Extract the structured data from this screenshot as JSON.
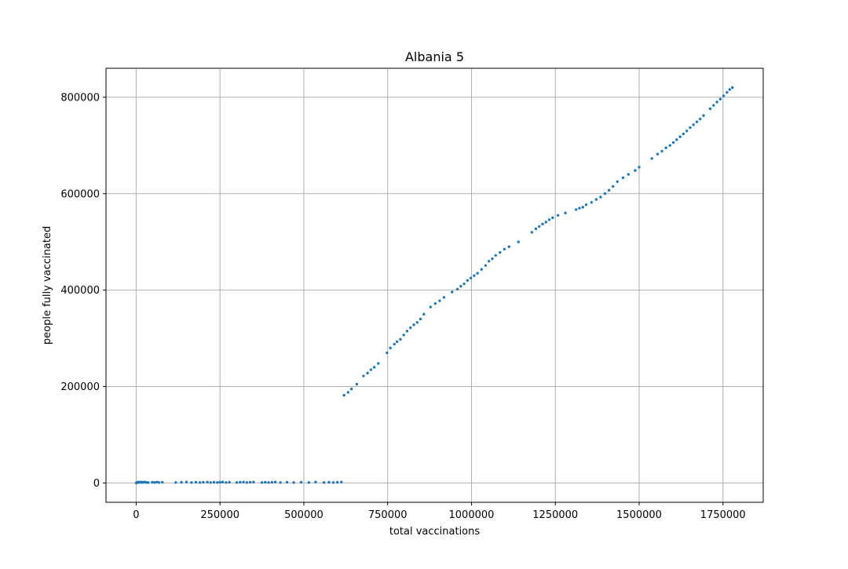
{
  "chart_data": {
    "type": "scatter",
    "title": "Albania 5",
    "xlabel": "total vaccinations",
    "ylabel": "people fully vaccinated",
    "xlim": [
      -90000,
      1870000
    ],
    "ylim": [
      -40000,
      860000
    ],
    "xticks": [
      0,
      250000,
      500000,
      750000,
      1000000,
      1250000,
      1500000,
      1750000
    ],
    "xtick_labels": [
      "0",
      "250000",
      "500000",
      "750000",
      "1000000",
      "1250000",
      "1500000",
      "1750000"
    ],
    "yticks": [
      0,
      200000,
      400000,
      600000,
      800000
    ],
    "ytick_labels": [
      "0",
      "200000",
      "400000",
      "600000",
      "800000"
    ],
    "grid": true,
    "marker_color": "#1f77b4",
    "series": [
      {
        "x": [
          0,
          2000,
          4000,
          6000,
          8000,
          10000,
          12000,
          15000,
          18000,
          22000,
          26000,
          30000,
          36000,
          48000,
          55000,
          62000,
          68000,
          78000,
          118000,
          135000,
          150000,
          165000,
          178000,
          190000,
          200000,
          212000,
          222000,
          232000,
          242000,
          250000,
          258000,
          268000,
          278000,
          300000,
          310000,
          320000,
          330000,
          340000,
          350000,
          375000,
          385000,
          395000,
          405000,
          415000,
          430000,
          450000,
          470000,
          492000,
          515000,
          535000,
          560000,
          575000,
          588000,
          600000,
          612000
        ],
        "y": [
          0,
          1000,
          1500,
          1000,
          2000,
          1000,
          1500,
          2000,
          1000,
          1500,
          2000,
          1000,
          1000,
          1500,
          1000,
          2000,
          1000,
          1500,
          1000,
          1500,
          2000,
          1000,
          1500,
          1000,
          1500,
          2000,
          1000,
          1500,
          1000,
          1500,
          2000,
          1000,
          1500,
          1000,
          1500,
          2000,
          1000,
          1500,
          2000,
          1000,
          1500,
          1000,
          1500,
          2000,
          1000,
          1500,
          1000,
          1500,
          1000,
          2000,
          1000,
          1500,
          1000,
          1500,
          2000
        ]
      },
      {
        "x": [
          620000,
          632000,
          642000,
          658000,
          678000,
          690000,
          700000,
          710000,
          722000,
          748000,
          758000,
          770000,
          778000,
          788000,
          798000,
          808000,
          818000,
          828000,
          838000,
          848000,
          858000,
          878000,
          892000,
          905000,
          918000,
          942000,
          958000,
          968000,
          978000,
          988000,
          998000,
          1008000,
          1018000,
          1030000,
          1042000,
          1052000,
          1062000,
          1072000,
          1085000,
          1098000,
          1112000,
          1140000,
          1180000,
          1192000,
          1202000,
          1212000,
          1222000,
          1232000,
          1242000,
          1258000,
          1280000,
          1312000,
          1322000,
          1332000,
          1342000,
          1358000,
          1372000,
          1385000,
          1398000,
          1410000,
          1422000,
          1435000,
          1452000,
          1468000,
          1488000,
          1500000,
          1538000,
          1555000,
          1568000,
          1580000,
          1592000,
          1602000,
          1612000,
          1622000,
          1632000,
          1642000,
          1652000,
          1662000,
          1672000,
          1682000,
          1692000,
          1712000,
          1722000,
          1732000,
          1742000,
          1752000,
          1762000,
          1770000,
          1778000
        ],
        "y": [
          182000,
          188000,
          195000,
          205000,
          222000,
          228000,
          235000,
          240000,
          248000,
          270000,
          280000,
          288000,
          293000,
          298000,
          307000,
          315000,
          322000,
          328000,
          333000,
          340000,
          350000,
          365000,
          372000,
          378000,
          385000,
          396000,
          402000,
          408000,
          413000,
          420000,
          425000,
          430000,
          435000,
          443000,
          451000,
          460000,
          465000,
          472000,
          478000,
          485000,
          490000,
          500000,
          520000,
          527000,
          532000,
          537000,
          541000,
          546000,
          550000,
          555000,
          560000,
          567000,
          570000,
          572000,
          577000,
          582000,
          588000,
          593000,
          600000,
          607000,
          615000,
          625000,
          633000,
          640000,
          648000,
          655000,
          673000,
          682000,
          688000,
          695000,
          700000,
          706000,
          712000,
          718000,
          724000,
          730000,
          737000,
          743000,
          749000,
          755000,
          762000,
          776000,
          783000,
          790000,
          796000,
          803000,
          810000,
          816000,
          820000
        ]
      }
    ]
  }
}
